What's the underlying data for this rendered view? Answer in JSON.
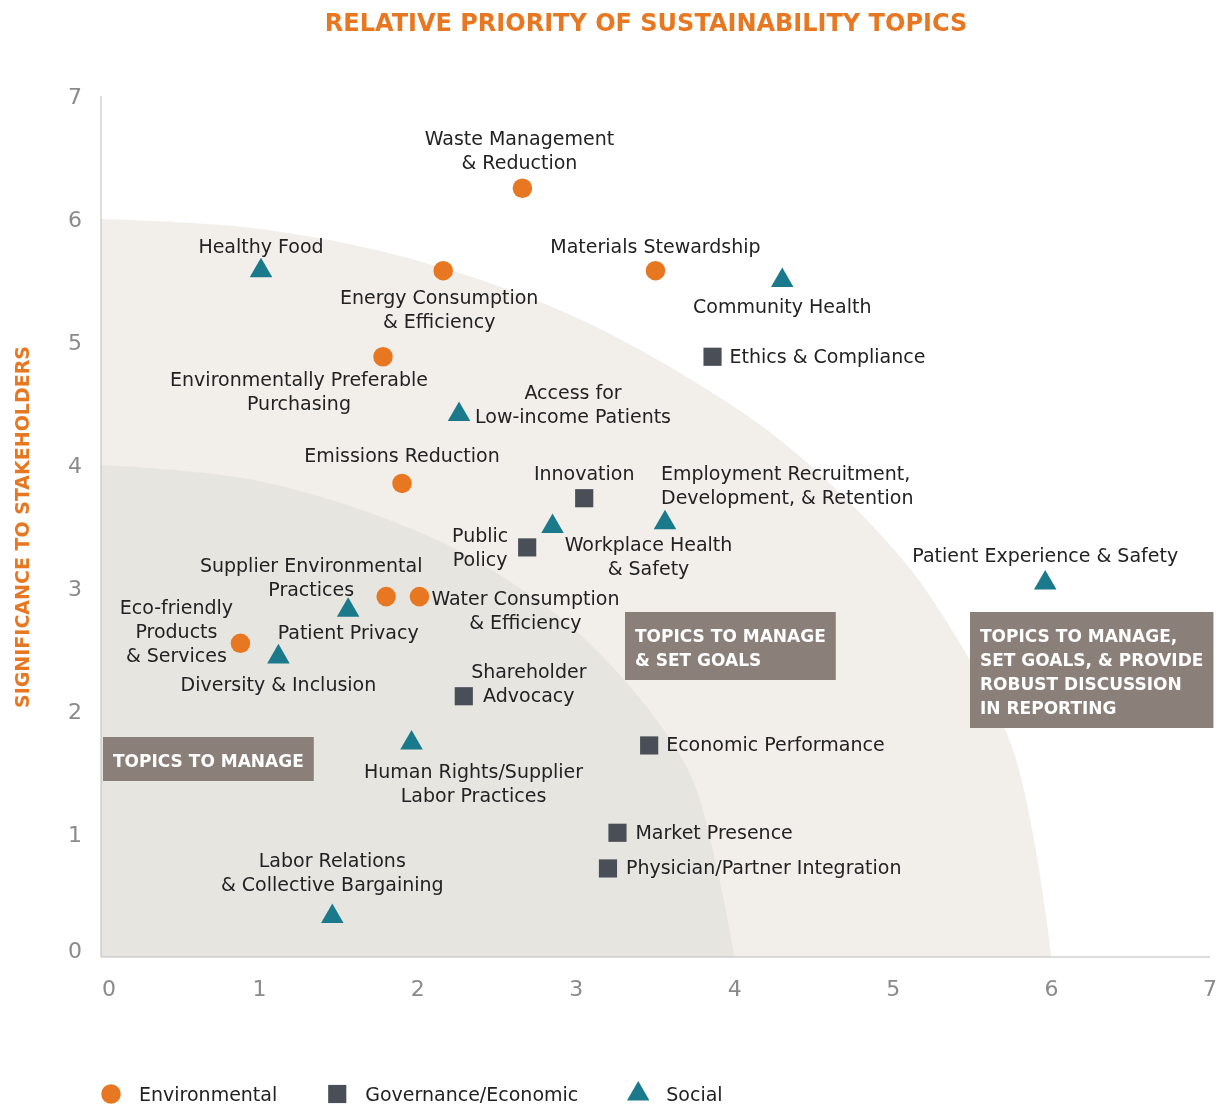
{
  "chart_data": {
    "type": "scatter",
    "title": "RELATIVE PRIORITY OF SUSTAINABILITY TOPICS",
    "ylabel": "SIGNIFICANCE TO STAKEHOLDERS",
    "xlim": [
      0,
      7
    ],
    "ylim": [
      0,
      7
    ],
    "xticks": [
      0,
      1,
      2,
      3,
      4,
      5,
      6,
      7
    ],
    "yticks": [
      0,
      1,
      2,
      3,
      4,
      5,
      6,
      7
    ],
    "grid": false,
    "legend": "bottom",
    "series": [
      {
        "type": "area",
        "color": "#f2efeb",
        "x": [
          0,
          1,
          2,
          3,
          4,
          4.5,
          5,
          5.25,
          5.75,
          6
        ],
        "values": [
          6,
          5.92,
          5.66,
          5.2,
          4.47,
          3.97,
          3.32,
          2.9,
          1.71,
          0
        ]
      },
      {
        "type": "area",
        "color": "#e7e5e0",
        "x": [
          0,
          1,
          2,
          2.5,
          3,
          3.5,
          3.75,
          4
        ],
        "values": [
          4,
          3.87,
          3.46,
          3.12,
          2.65,
          1.94,
          1.39,
          0
        ]
      },
      {
        "name": "Environmental",
        "color": "#e87722",
        "marker": "circle",
        "x": [
          2.66,
          2.16,
          3.5,
          1.78,
          1.9,
          1.8,
          2.01,
          0.88
        ],
        "values": [
          6.25,
          5.58,
          5.58,
          4.88,
          3.85,
          2.93,
          2.93,
          2.55
        ]
      },
      {
        "name": "Governance/Economic",
        "color": "#4a4f57",
        "marker": "square",
        "x": [
          3.86,
          3.05,
          2.69,
          2.29,
          3.46,
          3.26,
          3.2
        ],
        "values": [
          4.88,
          3.73,
          3.33,
          2.12,
          1.72,
          1.01,
          0.72
        ]
      },
      {
        "name": "Social",
        "color": "#1a7a8c",
        "marker": "triangle",
        "x": [
          1.01,
          4.3,
          2.26,
          2.85,
          3.56,
          5.96,
          1.56,
          1.12,
          1.96,
          1.46
        ],
        "values": [
          5.58,
          5.5,
          4.41,
          3.5,
          3.53,
          3.04,
          2.82,
          2.44,
          1.74,
          0.33
        ]
      }
    ],
    "annotations": [
      {
        "text": "Waste Management\n& Reduction",
        "x": 2.66,
        "y": 6.25
      },
      {
        "text": "Energy Consumption\n& Efficiency",
        "x": 2.16,
        "y": 5.58
      },
      {
        "text": "Materials Stewardship",
        "x": 3.5,
        "y": 5.58
      },
      {
        "text": "Environmentally Preferable\nPurchasing",
        "x": 1.78,
        "y": 4.88
      },
      {
        "text": "Emissions Reduction",
        "x": 1.9,
        "y": 3.85
      },
      {
        "text": "Supplier Environmental\nPractices",
        "x": 1.8,
        "y": 2.93
      },
      {
        "text": "Water Consumption\n& Efficiency",
        "x": 2.01,
        "y": 2.93
      },
      {
        "text": "Eco-friendly\nProducts\n& Services",
        "x": 0.88,
        "y": 2.55
      },
      {
        "text": "Ethics & Compliance",
        "x": 3.86,
        "y": 4.88
      },
      {
        "text": "Innovation",
        "x": 3.05,
        "y": 3.73
      },
      {
        "text": "Public\nPolicy",
        "x": 2.69,
        "y": 3.33
      },
      {
        "text": "Shareholder\nAdvocacy",
        "x": 2.29,
        "y": 2.12
      },
      {
        "text": "Economic Performance",
        "x": 3.46,
        "y": 1.72
      },
      {
        "text": "Market Presence",
        "x": 3.26,
        "y": 1.01
      },
      {
        "text": "Physician/Partner Integration",
        "x": 3.2,
        "y": 0.72
      },
      {
        "text": "Healthy Food",
        "x": 1.01,
        "y": 5.58
      },
      {
        "text": "Community Health",
        "x": 4.3,
        "y": 5.5
      },
      {
        "text": "Access for\nLow-income Patients",
        "x": 2.26,
        "y": 4.41
      },
      {
        "text": "Workplace Health\n& Safety",
        "x": 2.85,
        "y": 3.5
      },
      {
        "text": "Employment Recruitment,\nDevelopment, & Retention",
        "x": 3.56,
        "y": 3.53
      },
      {
        "text": "Patient Experience & Safety",
        "x": 5.96,
        "y": 3.04
      },
      {
        "text": "Patient Privacy",
        "x": 1.56,
        "y": 2.82
      },
      {
        "text": "Diversity & Inclusion",
        "x": 1.12,
        "y": 2.44
      },
      {
        "text": "Human Rights/Supplier\nLabor Practices",
        "x": 1.96,
        "y": 1.74
      },
      {
        "text": "Labor Relations\n& Collective Bargaining",
        "x": 1.46,
        "y": 0.33
      },
      "TOPICS TO MANAGE",
      "TOPICS TO MANAGE\n& SET GOALS",
      "TOPICS TO MANAGE,\nSET GOALS, & PROVIDE\nROBUST DISCUSSION\nIN REPORTING"
    ]
  }
}
